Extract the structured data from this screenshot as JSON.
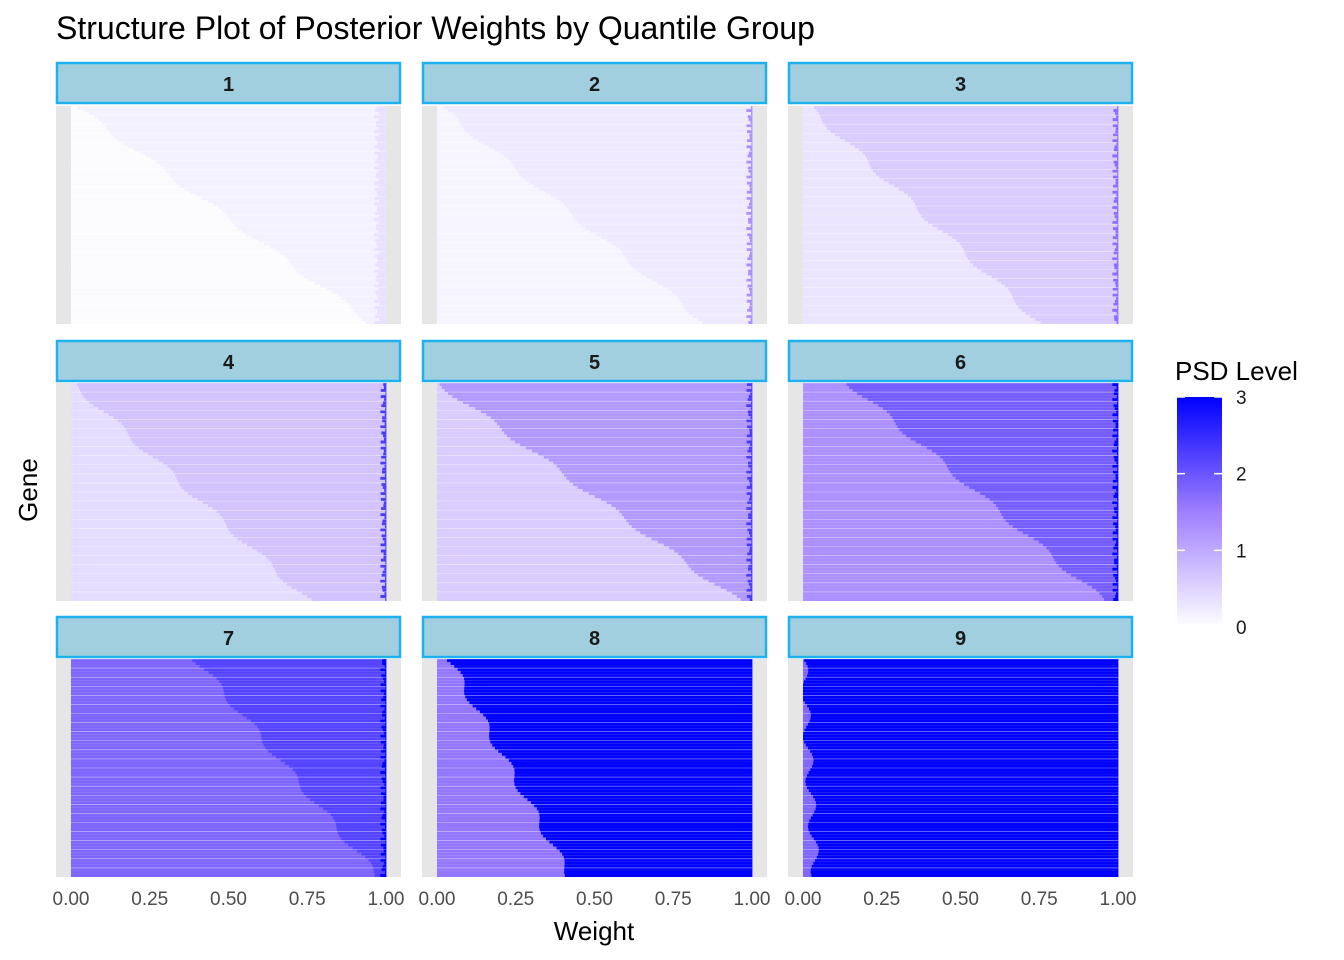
{
  "chart_data": {
    "type": "heatmap",
    "title": "Structure Plot of Posterior Weights by Quantile Group",
    "xlabel": "Weight",
    "ylabel": "Gene",
    "xlim": [
      0,
      1
    ],
    "x_ticks": [
      "0.00",
      "0.25",
      "0.50",
      "0.75",
      "1.00"
    ],
    "grid": false,
    "legend": {
      "title": "PSD Level",
      "placement": "right",
      "ticks": [
        "0",
        "1",
        "2",
        "3"
      ],
      "range": [
        0,
        3
      ],
      "colors": {
        "low": "#ffffff",
        "high": "#0000ff"
      }
    },
    "panels": [
      {
        "label": "1",
        "levels": [
          0.04,
          0.15,
          0.35
        ],
        "boundaries": [
          0.2,
          0.97
        ],
        "boundary_range": [
          0.02,
          0.95
        ]
      },
      {
        "label": "2",
        "levels": [
          0.12,
          0.25,
          1.3
        ],
        "boundaries": [
          0.3,
          0.99
        ],
        "boundary_range": [
          0.01,
          0.85
        ]
      },
      {
        "label": "3",
        "levels": [
          0.3,
          0.6,
          1.7
        ],
        "boundaries": [
          0.6,
          0.99
        ],
        "boundary_range": [
          0.02,
          0.75
        ]
      },
      {
        "label": "4",
        "levels": [
          0.4,
          0.7,
          2.3
        ],
        "boundaries": [
          0.65,
          0.99
        ],
        "boundary_range": [
          0.01,
          0.75
        ]
      },
      {
        "label": "5",
        "levels": [
          0.6,
          1.2,
          2.3
        ],
        "boundaries": [
          0.6,
          0.99
        ],
        "boundary_range": [
          0.01,
          0.95
        ]
      },
      {
        "label": "6",
        "levels": [
          1.3,
          1.9,
          3.0
        ],
        "boundaries": [
          0.7,
          0.99
        ],
        "boundary_range": [
          0.15,
          0.95
        ]
      },
      {
        "label": "7",
        "levels": [
          1.8,
          2.2,
          3.0
        ],
        "boundaries": [
          0.7,
          0.99
        ],
        "boundary_range": [
          0.4,
          0.97
        ]
      },
      {
        "label": "8",
        "levels": [
          1.6,
          3.0
        ],
        "boundaries": [
          0.2
        ],
        "boundary_range": [
          0.04,
          0.42
        ]
      },
      {
        "label": "9",
        "levels": [
          1.8,
          3.0
        ],
        "boundaries": [
          0.01
        ],
        "boundary_range": [
          0.0,
          0.04
        ]
      }
    ]
  }
}
